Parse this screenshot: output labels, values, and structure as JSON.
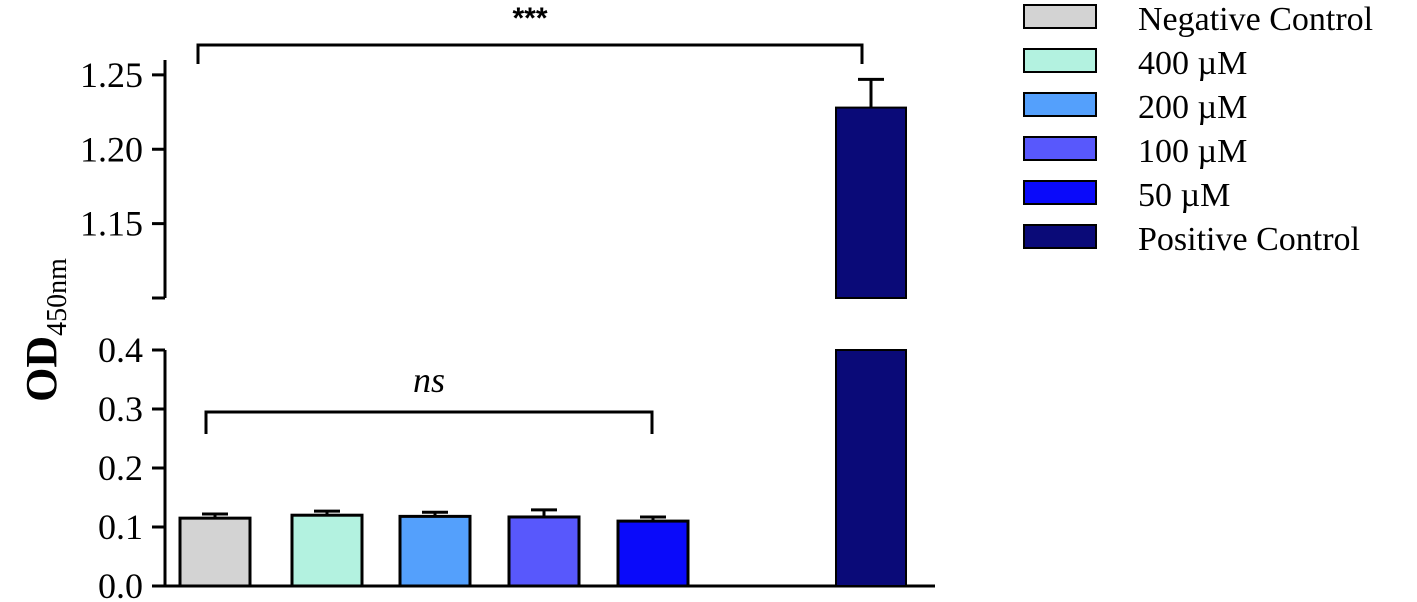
{
  "chart_data": {
    "type": "bar",
    "categories": [
      "Negative Control",
      "400 µM",
      "200 µM",
      "100 µM",
      "50 µM",
      "Positive Control"
    ],
    "series": [
      {
        "values": [
          0.115,
          0.12,
          0.118,
          0.117,
          0.11,
          1.228
        ],
        "errors": [
          0.007,
          0.007,
          0.007,
          0.012,
          0.007,
          0.019
        ]
      }
    ],
    "colors": [
      "#d3d3d3",
      "#b3f2e0",
      "#54a0fc",
      "#5858fc",
      "#0a0afa",
      "#0a0a78"
    ],
    "ylabel": "OD",
    "ylabel_subscript": "450nm",
    "axis_break": {
      "lower_segment": [
        0.0,
        0.4
      ],
      "upper_segment": [
        1.1,
        1.26
      ]
    },
    "lower_ticks": [
      "0.0",
      "0.1",
      "0.2",
      "0.3",
      "0.4"
    ],
    "upper_ticks": [
      "1.15",
      "1.20",
      "1.25"
    ],
    "legend_position": "top-right",
    "annotations": [
      {
        "text": "ns",
        "from": "Negative Control",
        "to": "50 µM"
      },
      {
        "text": "***",
        "from": "Negative Control",
        "to": "Positive Control"
      }
    ],
    "legend": [
      "Negative Control",
      "400 µM",
      "200 µM",
      "100 µM",
      "50 µM",
      "Positive Control"
    ]
  }
}
